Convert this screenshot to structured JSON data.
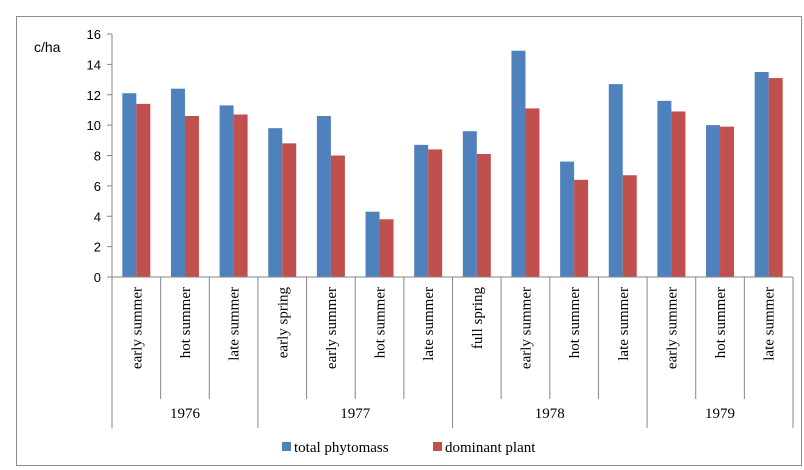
{
  "chart_data": {
    "type": "bar",
    "ylabel": "c/ha",
    "ylim": [
      0,
      16
    ],
    "yticks": [
      0,
      2,
      4,
      6,
      8,
      10,
      12,
      14,
      16
    ],
    "grid": false,
    "legend_position": "bottom",
    "groups": [
      {
        "label": "1976",
        "categories": [
          "early summer",
          "hot summer",
          "late summer"
        ]
      },
      {
        "label": "1977",
        "categories": [
          "early spring",
          "early summer",
          "hot summer",
          "late summer"
        ]
      },
      {
        "label": "1978",
        "categories": [
          "full spring",
          "early summer",
          "hot summer",
          "late summer"
        ]
      },
      {
        "label": "1979",
        "categories": [
          "early summer",
          "hot summer",
          "late summer"
        ]
      }
    ],
    "series": [
      {
        "name": "total phytomass",
        "color": "#4F81BD",
        "values": [
          12.1,
          12.4,
          11.3,
          9.8,
          10.6,
          4.3,
          8.7,
          9.6,
          14.9,
          7.6,
          12.7,
          11.6,
          10.0,
          13.5
        ]
      },
      {
        "name": "dominant plant",
        "color": "#C0504D",
        "values": [
          11.4,
          10.6,
          10.7,
          8.8,
          8.0,
          3.8,
          8.4,
          8.1,
          11.1,
          6.4,
          6.7,
          10.9,
          9.9,
          13.1
        ]
      }
    ]
  }
}
